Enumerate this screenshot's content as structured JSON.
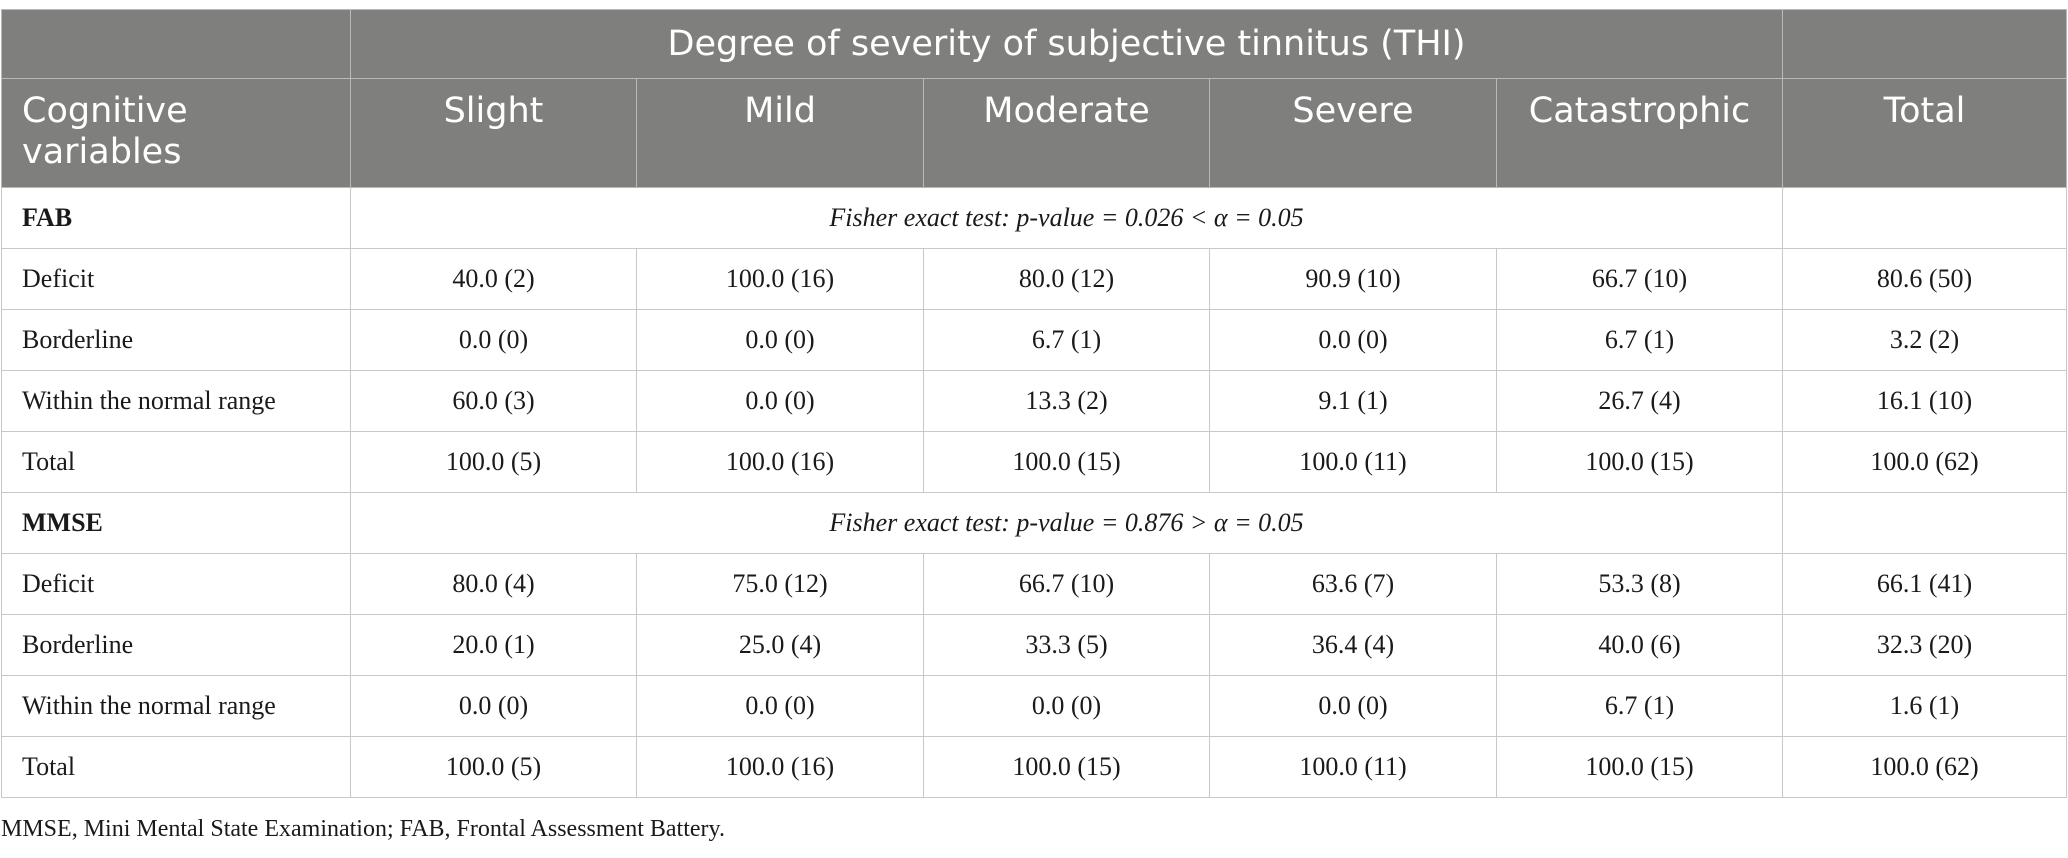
{
  "header": {
    "corner": "",
    "group_title": "Degree of severity of subjective tinnitus (THI)",
    "row_header": "Cognitive\nvariables",
    "columns": [
      "Slight",
      "Mild",
      "Moderate",
      "Severe",
      "Catastrophic",
      "Total"
    ]
  },
  "sections": [
    {
      "name": "FAB",
      "test": "Fisher exact test: p-value = 0.026 < α = 0.05",
      "rows": [
        {
          "label": "Deficit",
          "values": [
            "40.0 (2)",
            "100.0 (16)",
            "80.0 (12)",
            "90.9 (10)",
            "66.7 (10)",
            "80.6 (50)"
          ]
        },
        {
          "label": "Borderline",
          "values": [
            "0.0 (0)",
            "0.0 (0)",
            "6.7 (1)",
            "0.0 (0)",
            "6.7 (1)",
            "3.2 (2)"
          ]
        },
        {
          "label": "Within the normal range",
          "values": [
            "60.0 (3)",
            "0.0 (0)",
            "13.3 (2)",
            "9.1 (1)",
            "26.7 (4)",
            "16.1 (10)"
          ]
        },
        {
          "label": "Total",
          "values": [
            "100.0 (5)",
            "100.0 (16)",
            "100.0 (15)",
            "100.0 (11)",
            "100.0 (15)",
            "100.0 (62)"
          ]
        }
      ]
    },
    {
      "name": "MMSE",
      "test": "Fisher exact test: p-value = 0.876 > α = 0.05",
      "rows": [
        {
          "label": "Deficit",
          "values": [
            "80.0 (4)",
            "75.0 (12)",
            "66.7 (10)",
            "63.6 (7)",
            "53.3 (8)",
            "66.1 (41)"
          ]
        },
        {
          "label": "Borderline",
          "values": [
            "20.0 (1)",
            "25.0 (4)",
            "33.3 (5)",
            "36.4 (4)",
            "40.0 (6)",
            "32.3 (20)"
          ]
        },
        {
          "label": "Within the normal range",
          "values": [
            "0.0 (0)",
            "0.0 (0)",
            "0.0 (0)",
            "0.0 (0)",
            "6.7 (1)",
            "1.6 (1)"
          ]
        },
        {
          "label": "Total",
          "values": [
            "100.0 (5)",
            "100.0 (16)",
            "100.0 (15)",
            "100.0 (11)",
            "100.0 (15)",
            "100.0 (62)"
          ]
        }
      ]
    }
  ],
  "footnote": "MMSE, Mini Mental State Examination; FAB, Frontal Assessment Battery."
}
